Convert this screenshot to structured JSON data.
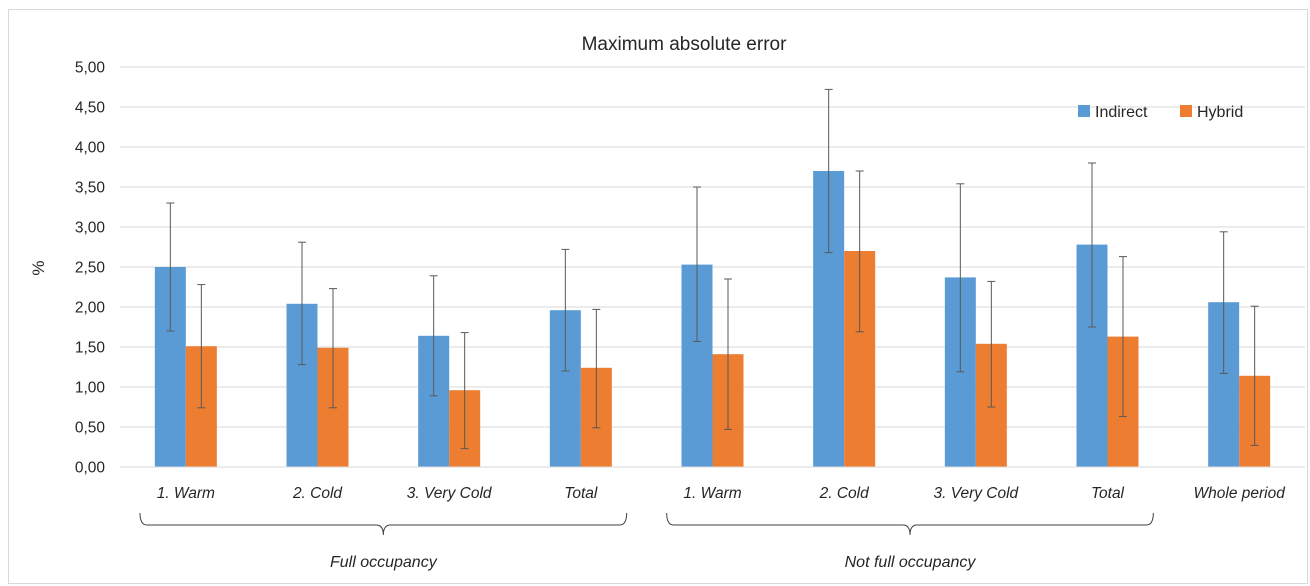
{
  "chart_data": {
    "type": "bar",
    "title": "Maximum absolute error",
    "ylabel": "%",
    "xlabel": "",
    "ylim": [
      0,
      5
    ],
    "yticks": [
      "0,00",
      "0,50",
      "1,00",
      "1,50",
      "2,00",
      "2,50",
      "3,00",
      "3,50",
      "4,00",
      "4,50",
      "5,00"
    ],
    "grid": true,
    "legend_position": "top-right",
    "categories": [
      "1. Warm",
      "2. Cold",
      "3. Very Cold",
      "Total",
      "1. Warm",
      "2. Cold",
      "3. Very Cold",
      "Total",
      "Whole period"
    ],
    "groups": [
      {
        "label": "Full occupancy",
        "from": 0,
        "to": 3
      },
      {
        "label": "Not full occupancy",
        "from": 4,
        "to": 7
      }
    ],
    "series": [
      {
        "name": "Indirect",
        "color": "#5b9bd5",
        "values": [
          2.5,
          2.04,
          1.64,
          1.96,
          2.53,
          3.7,
          2.37,
          2.78,
          2.06
        ],
        "error_low": [
          1.7,
          1.28,
          0.89,
          1.2,
          1.57,
          2.68,
          1.19,
          1.75,
          1.17
        ],
        "error_high": [
          3.3,
          2.81,
          2.39,
          2.72,
          3.5,
          4.72,
          3.54,
          3.8,
          2.94
        ]
      },
      {
        "name": "Hybrid",
        "color": "#ed7d31",
        "values": [
          1.51,
          1.49,
          0.96,
          1.24,
          1.41,
          2.7,
          1.54,
          1.63,
          1.14
        ],
        "error_low": [
          0.74,
          0.74,
          0.23,
          0.49,
          0.47,
          1.69,
          0.75,
          0.63,
          0.27
        ],
        "error_high": [
          2.28,
          2.23,
          1.68,
          1.97,
          2.35,
          3.7,
          2.32,
          2.63,
          2.01
        ]
      }
    ]
  }
}
